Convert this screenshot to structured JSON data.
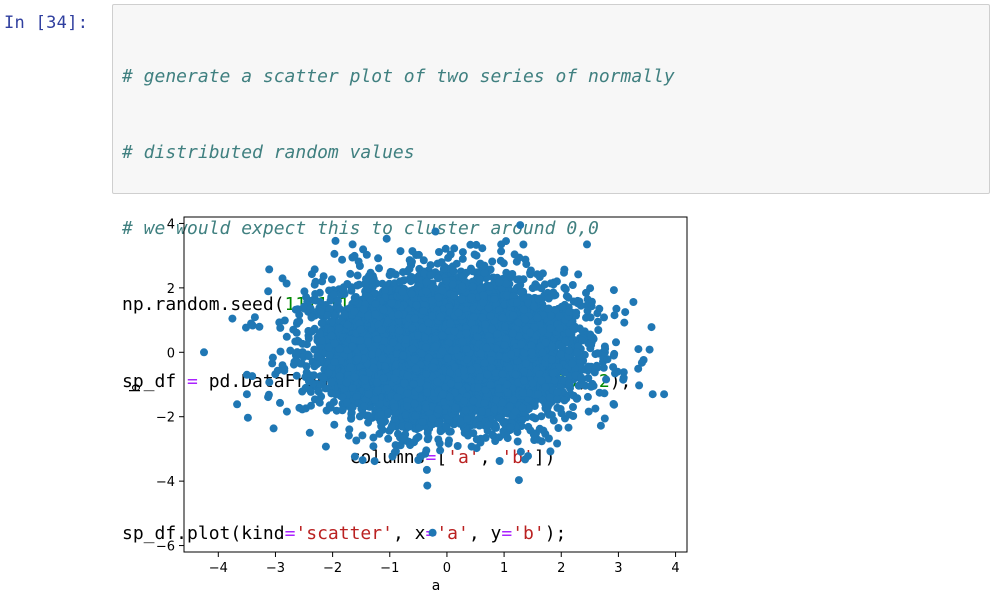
{
  "cell": {
    "prompt": "In [34]:",
    "lines": [
      "# generate a scatter plot of two series of normally",
      "# distributed random values",
      "# we would expect this to cluster around 0,0",
      "np.random.seed(111111)",
      "sp_df = pd.DataFrame(np.random.randn(10000, 2),",
      "                     columns=['a', 'b'])",
      "sp_df.plot(kind='scatter', x='a', y='b');"
    ]
  },
  "colors": {
    "marker": "#1f77b4",
    "prompt": "#303f9f",
    "comment": "#408080"
  },
  "chart_data": {
    "type": "scatter",
    "title": "",
    "xlabel": "a",
    "ylabel": "b",
    "xlim": [
      -4.6,
      4.2
    ],
    "ylim": [
      -6.2,
      4.2
    ],
    "xticks": [
      -4,
      -3,
      -2,
      -1,
      0,
      1,
      2,
      3,
      4
    ],
    "xtick_labels": [
      "−4",
      "−3",
      "−2",
      "−1",
      "0",
      "1",
      "2",
      "3",
      "4"
    ],
    "yticks": [
      4,
      2,
      0,
      -2,
      -4,
      -6
    ],
    "ytick_labels": [
      "4",
      "2",
      "0",
      "−2",
      "−4",
      "−6"
    ],
    "grid": false,
    "legend": "none",
    "n_points": 10000,
    "center": [
      0,
      0
    ],
    "std": [
      1,
      1
    ],
    "outliers": [
      [
        -4.25,
        0.0
      ],
      [
        -0.25,
        -5.6
      ],
      [
        -0.35,
        -3.65
      ],
      [
        -0.2,
        3.75
      ],
      [
        3.8,
        -1.3
      ],
      [
        3.6,
        -1.3
      ],
      [
        -3.5,
        -0.7
      ],
      [
        -3.5,
        -1.3
      ],
      [
        3.35,
        0.1
      ],
      [
        2.45,
        3.35
      ],
      [
        -1.65,
        3.35
      ],
      [
        0.95,
        3.35
      ]
    ]
  }
}
